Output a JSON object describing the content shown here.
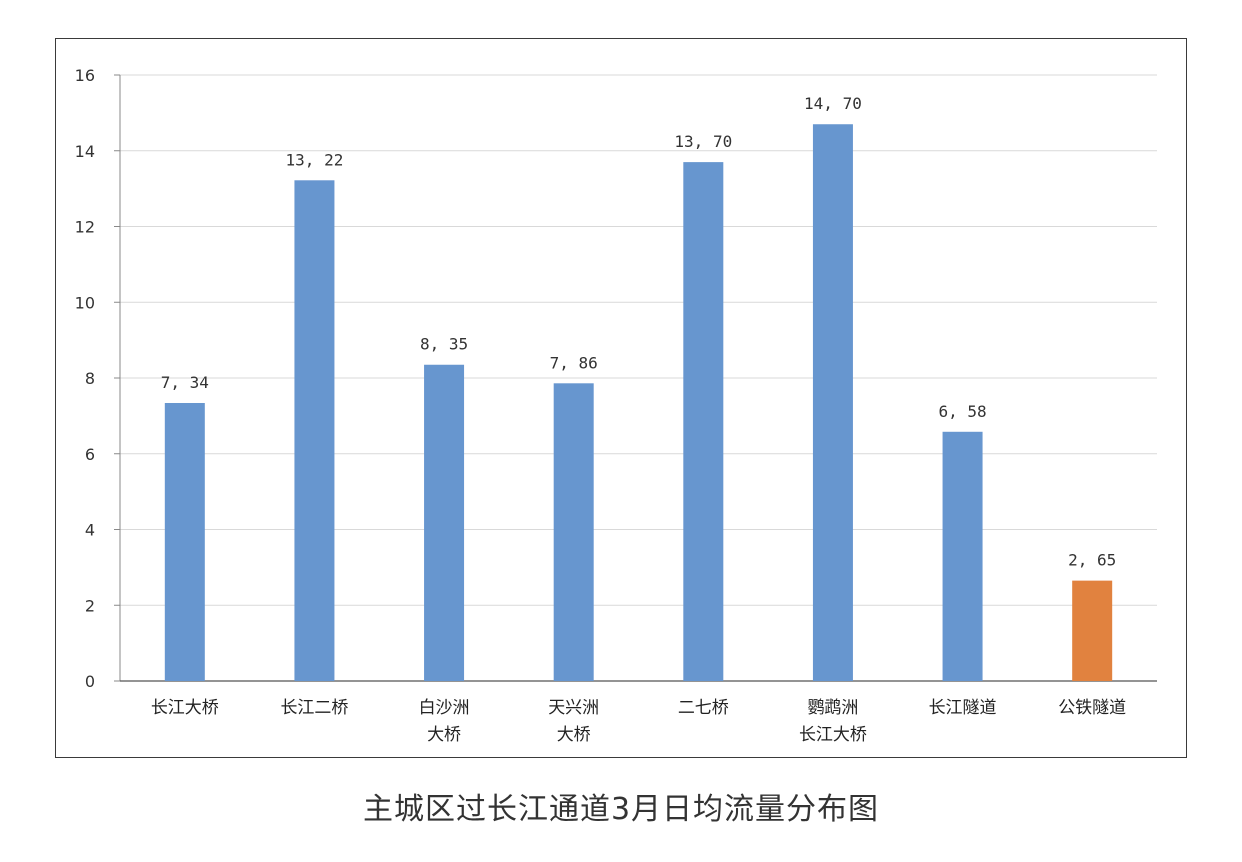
{
  "caption": "主城区过长江通道3月日均流量分布图",
  "chart_data": {
    "type": "bar",
    "categories": [
      [
        "长江大桥"
      ],
      [
        "长江二桥"
      ],
      [
        "白沙洲",
        "大桥"
      ],
      [
        "天兴洲",
        "大桥"
      ],
      [
        "二七桥"
      ],
      [
        "鹦鹉洲",
        "长江大桥"
      ],
      [
        "长江隧道"
      ],
      [
        "公铁隧道"
      ]
    ],
    "values": [
      7.34,
      13.22,
      8.35,
      7.86,
      13.7,
      14.7,
      6.58,
      2.65
    ],
    "value_labels": [
      "7, 34",
      "13, 22",
      "8, 35",
      "7, 86",
      "13, 70",
      "14, 70",
      "6, 58",
      "2, 65"
    ],
    "colors": [
      "#6796cf",
      "#6796cf",
      "#6796cf",
      "#6796cf",
      "#6796cf",
      "#6796cf",
      "#6796cf",
      "#e1823f"
    ],
    "ylim": [
      0,
      16
    ],
    "yticks": [
      "0",
      "2",
      "4",
      "6",
      "8",
      "10",
      "12",
      "14",
      "16"
    ],
    "grid": true,
    "title": "",
    "xlabel": "",
    "ylabel": ""
  }
}
